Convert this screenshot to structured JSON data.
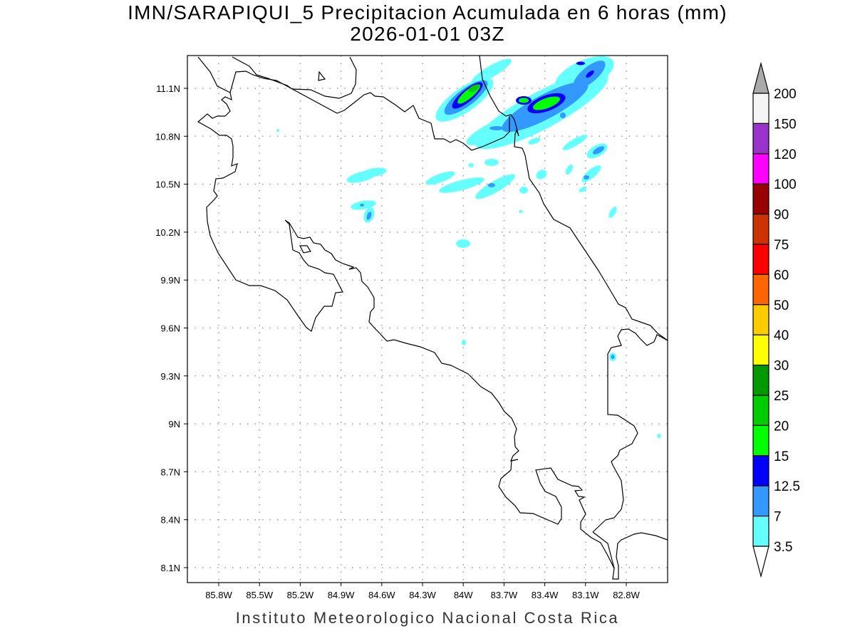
{
  "title": {
    "line1": "IMN/SARAPIQUI_5 Precipitacion Acumulada en 6 horas (mm)",
    "line2": "2026-01-01 03Z"
  },
  "footer": "Instituto Meteorologico Nacional Costa Rica",
  "axes": {
    "lon_ticks": [
      "85.8W",
      "85.5W",
      "85.2W",
      "84.9W",
      "84.6W",
      "84.3W",
      "84W",
      "83.7W",
      "83.4W",
      "83.1W",
      "82.8W"
    ],
    "lat_ticks": [
      "11.1N",
      "10.8N",
      "10.5N",
      "10.2N",
      "9.9N",
      "9.6N",
      "9.3N",
      "9N",
      "8.7N",
      "8.4N",
      "8.1N"
    ]
  },
  "colorbar": {
    "labels": [
      "200",
      "150",
      "120",
      "100",
      "90",
      "75",
      "60",
      "50",
      "40",
      "30",
      "25",
      "20",
      "15",
      "12.5",
      "7",
      "3.5"
    ],
    "colors": [
      "#f5f5f5",
      "#9933cc",
      "#ff00ff",
      "#990000",
      "#cc3300",
      "#ff0000",
      "#ff6600",
      "#ffcc00",
      "#ffff00",
      "#009900",
      "#00cc00",
      "#00ff00",
      "#0000ff",
      "#3399ff",
      "#66ffff"
    ],
    "over_color": "#aaaaaa",
    "under_color": "#ffffff"
  },
  "levels": {
    "l3_5": "#66ffff",
    "l7": "#3399ff",
    "l12_5": "#0000ff",
    "l15": "#00ff00",
    "l20": "#00cc00"
  }
}
